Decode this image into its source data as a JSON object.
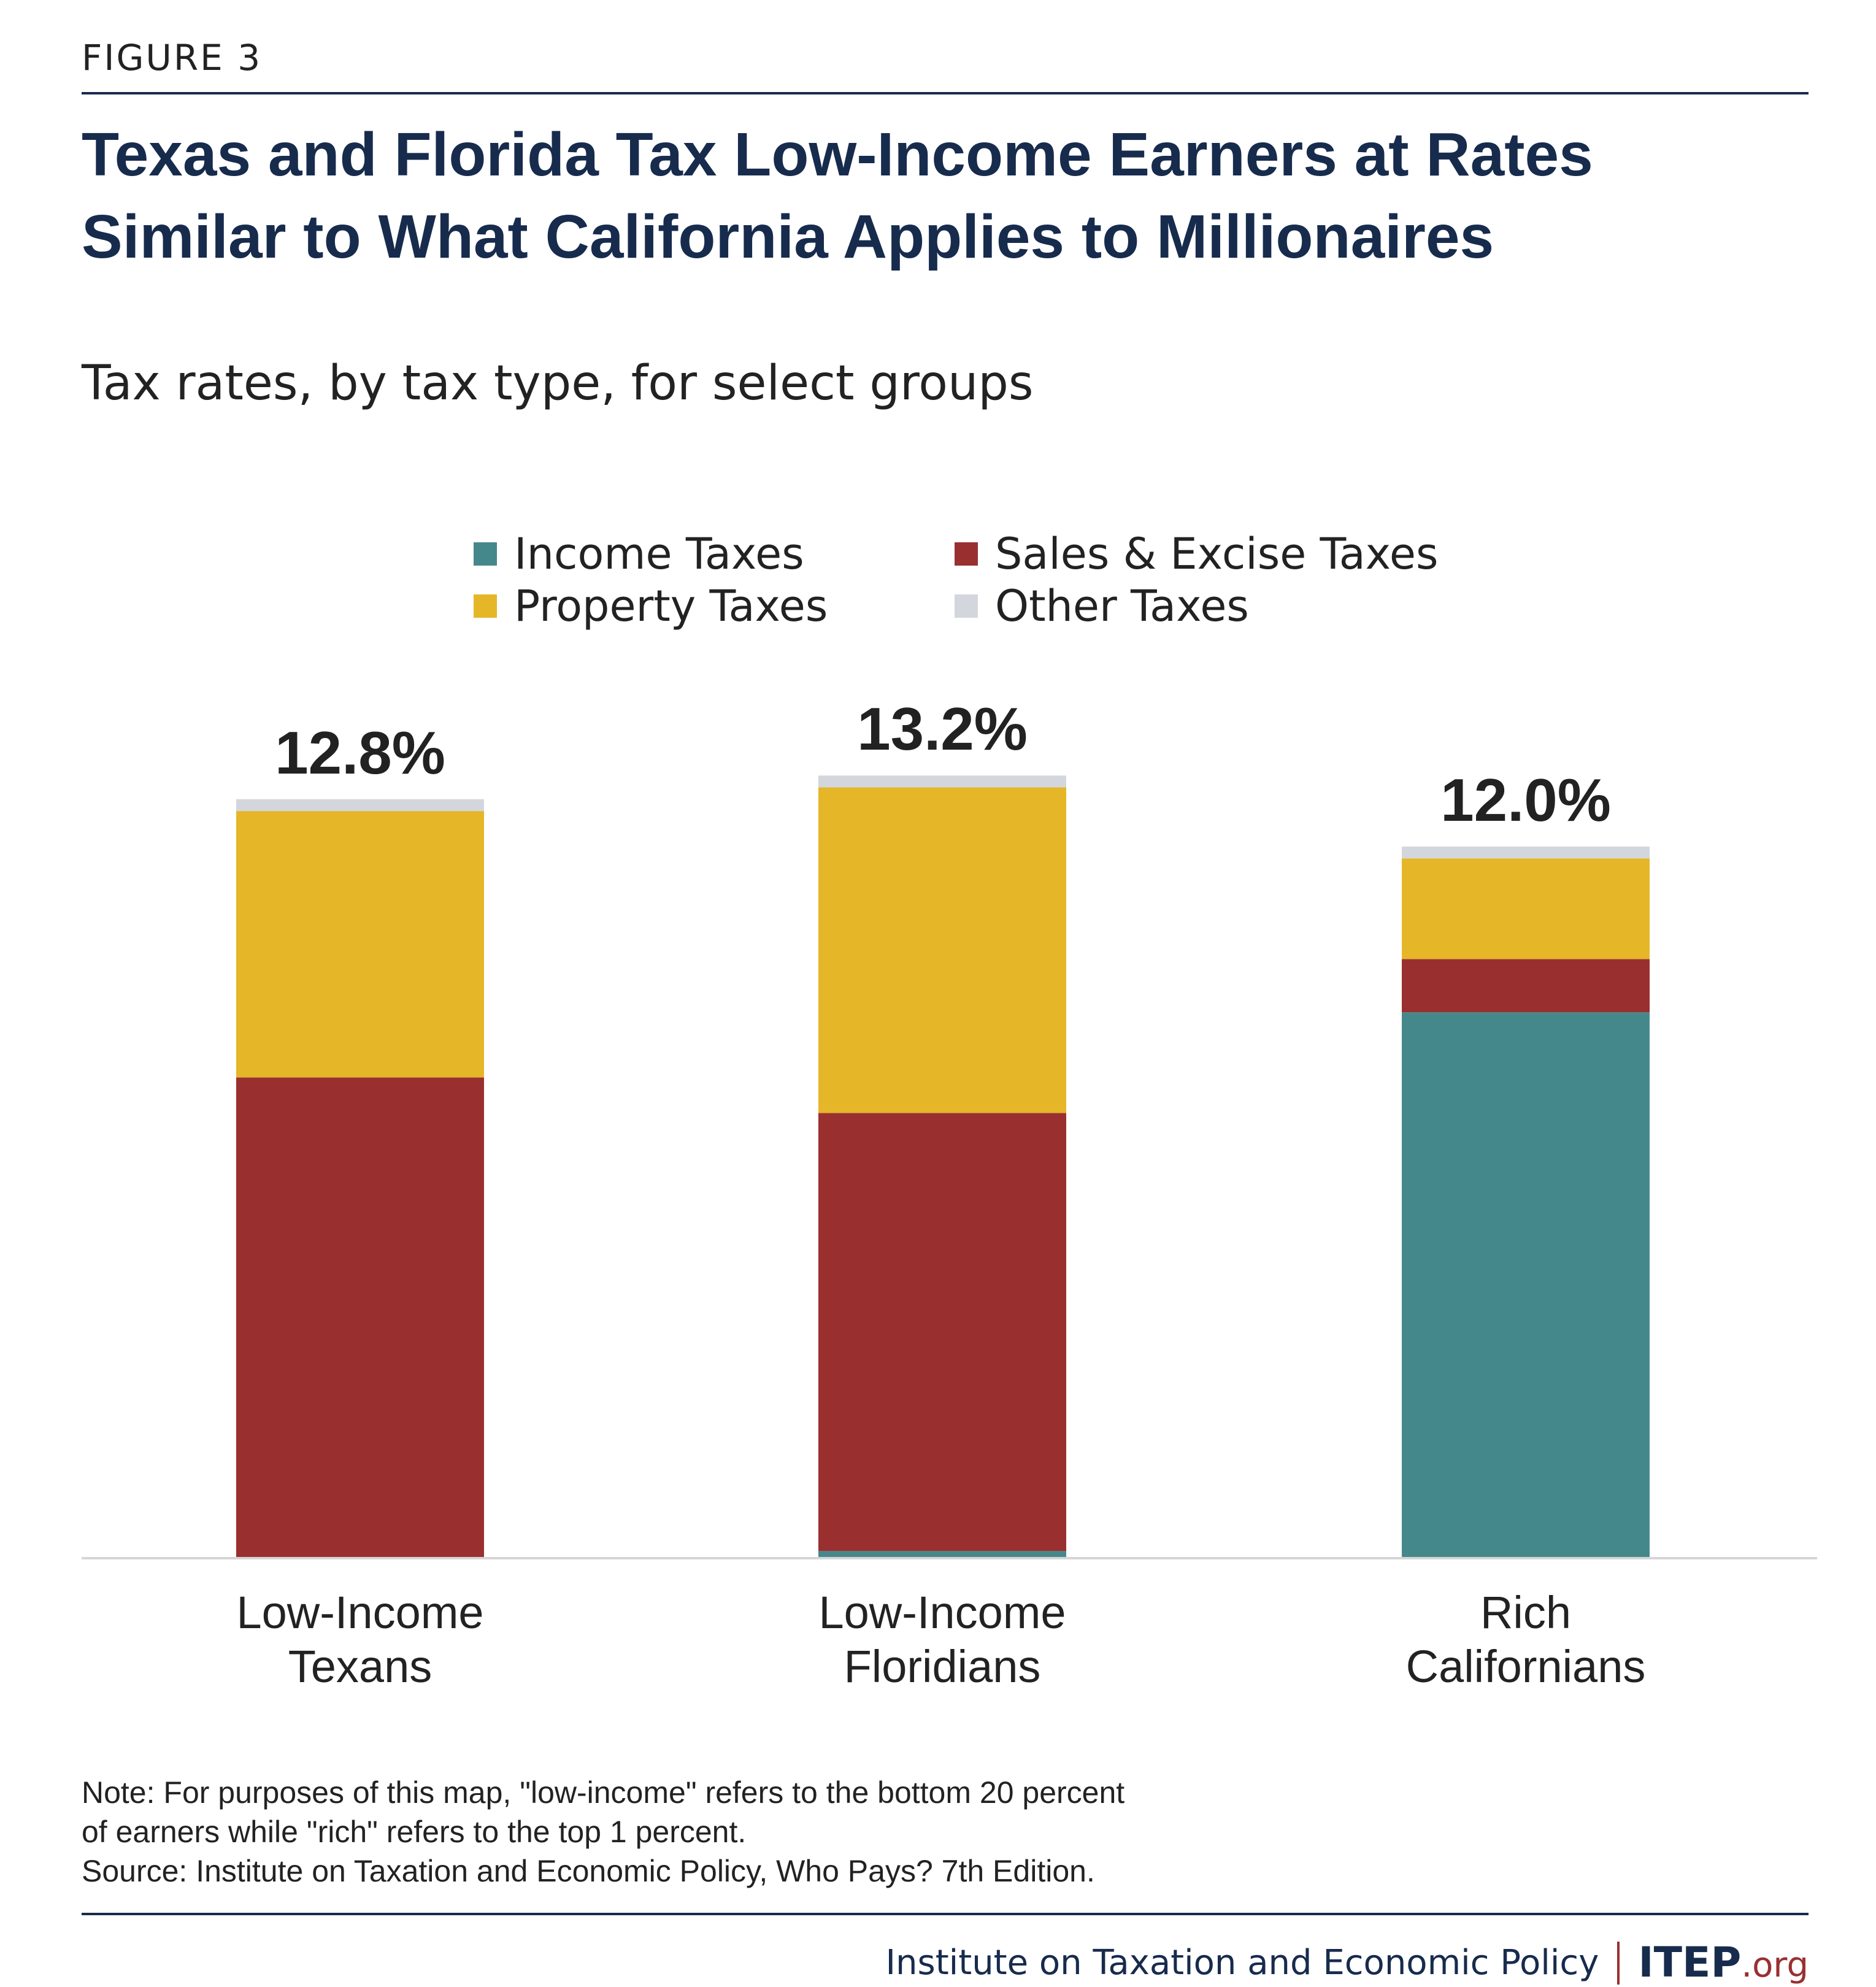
{
  "figure_label": "FIGURE 3",
  "title_lines": [
    "Texas and Florida Tax Low-Income Earners at Rates",
    "Similar to What California Applies to Millionaires"
  ],
  "subtitle": "Tax rates, by tax type, for select groups",
  "chart_data": {
    "type": "bar",
    "stacked": true,
    "categories": [
      [
        "Low-Income",
        "Texans"
      ],
      [
        "Low-Income",
        "Floridians"
      ],
      [
        "Rich",
        "Californians"
      ]
    ],
    "series": [
      {
        "name": "Income Taxes",
        "color": "#45888c",
        "values": [
          0.0,
          0.1,
          9.2
        ]
      },
      {
        "name": "Sales & Excise Taxes",
        "color": "#9a2f2f",
        "values": [
          8.1,
          7.4,
          0.9
        ]
      },
      {
        "name": "Property Taxes",
        "color": "#e5b628",
        "values": [
          4.5,
          5.5,
          1.7
        ]
      },
      {
        "name": "Other Taxes",
        "color": "#d3d6dc",
        "values": [
          0.2,
          0.2,
          0.2
        ]
      }
    ],
    "totals": [
      "12.8%",
      "13.2%",
      "12.0%"
    ],
    "ylim": [
      0,
      14
    ],
    "grid": false,
    "y_axis_shown": false,
    "legend_position": "top-center"
  },
  "notes": [
    "Note: For purposes of this map, \"low-income\" refers to the bottom 20 percent",
    "of earners while \"rich\" refers to the top 1 percent.",
    "Source: Institute on Taxation and Economic Policy, Who Pays? 7th Edition."
  ],
  "footer": {
    "org": "Institute on Taxation and Economic Policy",
    "logo_main": "ITEP",
    "logo_suffix": ".org"
  }
}
